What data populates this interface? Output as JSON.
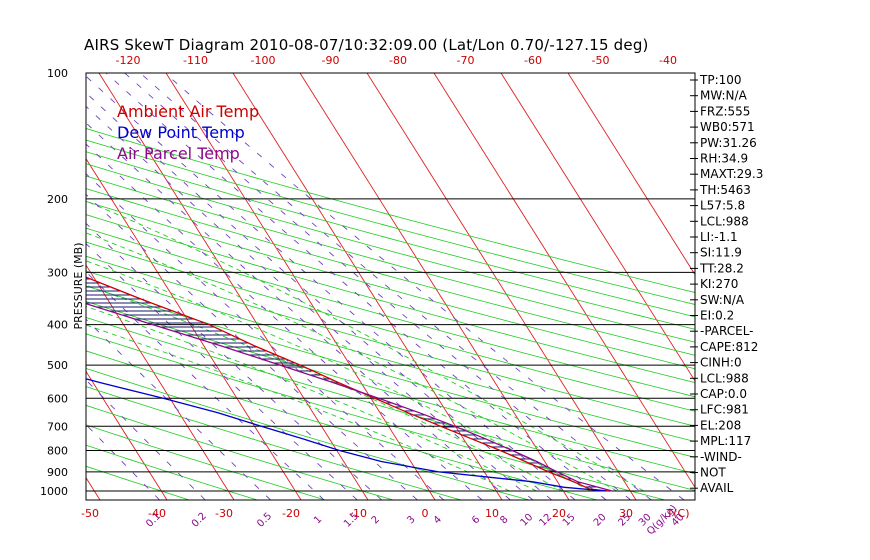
{
  "title": "AIRS SkewT Diagram 2010-08-07/10:32:09.00 (Lat/Lon 0.70/-127.15 deg)",
  "ylabel": "PRESSURE (MB)",
  "legend": [
    {
      "label": "Ambient Air Temp",
      "color": "#cc0000"
    },
    {
      "label": "Dew Point Temp",
      "color": "#0000cc"
    },
    {
      "label": "Air Parcel Temp",
      "color": "#8a0a8a"
    }
  ],
  "top_temp_labels": [
    "-120",
    "-110",
    "-100",
    "-90",
    "-80",
    "-70",
    "-60",
    "-50",
    "-40"
  ],
  "bottom_temp_labels": [
    "-50",
    "-40",
    "-30",
    "-20",
    "-10",
    "0",
    "10",
    "20",
    "30",
    "T(C)"
  ],
  "mixing_ratio_labels": [
    "0.1",
    "0.2",
    "0.5",
    "1",
    "1.5",
    "2",
    "3",
    "4",
    "6",
    "8",
    "10",
    "12",
    "15",
    "20",
    "25",
    "30",
    "40",
    "Q(g/kg)"
  ],
  "pressure_labels": [
    "100",
    "200",
    "300",
    "400",
    "500",
    "600",
    "700",
    "800",
    "900",
    "1000"
  ],
  "indices": [
    "TP:100",
    "MW:N/A",
    "FRZ:555",
    "WB0:571",
    "PW:31.26",
    "RH:34.9",
    "MAXT:29.3",
    "TH:5463",
    "L57:5.8",
    "LCL:988",
    "LI:-1.1",
    "SI:11.9",
    "TT:28.2",
    "KI:270",
    "SW:N/A",
    "EI:0.2",
    "-PARCEL-",
    "CAPE:812",
    "CINH:0",
    "LCL:988",
    "CAP:0.0",
    "LFC:981",
    "EL:208",
    "MPL:117",
    "-WIND-",
    "NOT",
    "AVAIL"
  ],
  "chart_data": {
    "type": "line",
    "title": "AIRS SkewT Diagram 2010-08-07/10:32:09.00 (Lat/Lon 0.70/-127.15 deg)",
    "ylabel": "PRESSURE (MB)",
    "y_scale": "log",
    "ylim": [
      1000,
      100
    ],
    "grid": true,
    "legend_placement": "top-left",
    "series": [
      {
        "name": "Ambient Air Temp",
        "pressure": [
          1000,
          990,
          950,
          900,
          850,
          800,
          750,
          700,
          650,
          600,
          550,
          500,
          450,
          400,
          350,
          300,
          250,
          208,
          170,
          145,
          120,
          100
        ],
        "temp_c": [
          26.8,
          24.2,
          22.4,
          19.6,
          17.1,
          14.4,
          11.2,
          7.8,
          4.2,
          0.6,
          -3.4,
          -7.4,
          -12.4,
          -17.2,
          -24.6,
          -32.5,
          -44.2,
          -57.0,
          -76.5,
          -74.6,
          -71.6,
          -69.4
        ]
      },
      {
        "name": "Dew Point Temp",
        "pressure": [
          1000,
          980,
          950,
          900,
          850,
          800,
          750,
          700,
          650,
          600,
          550,
          500,
          450,
          400,
          350,
          300,
          250,
          200,
          170,
          145,
          120,
          100
        ],
        "temp_c": [
          26.4,
          20.5,
          16.2,
          3.2,
          -4.4,
          -9.6,
          -14.0,
          -19.0,
          -24.2,
          -31.0,
          -39.0,
          -47.0,
          -53.5,
          -58.2,
          -63.6,
          -69.4,
          -76.5,
          -85.0,
          -89.3,
          -88.8,
          -87.8,
          -86.4
        ]
      },
      {
        "name": "Air Parcel Temp",
        "pressure": [
          1000,
          950,
          900,
          850,
          800,
          750,
          700,
          650,
          600,
          550,
          500,
          450,
          400,
          350,
          300,
          250,
          208,
          170,
          145,
          120,
          100
        ],
        "temp_c": [
          27.3,
          23.0,
          20.9,
          18.8,
          16.2,
          13.3,
          9.9,
          5.9,
          1.2,
          -4.2,
          -10.4,
          -17.4,
          -25.6,
          -34.9,
          -45.5,
          -57.9,
          -70.0,
          -81.5,
          -90.5,
          -100.5,
          -110.0
        ]
      }
    ]
  }
}
